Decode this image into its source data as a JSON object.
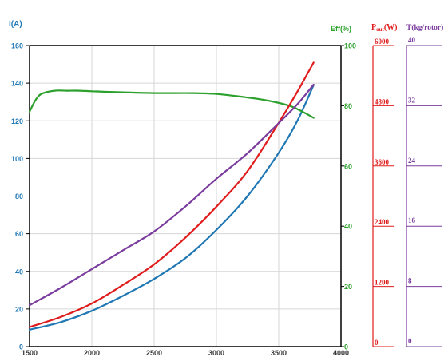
{
  "chart_data": {
    "type": "line",
    "x_axis": {
      "range": [
        1500,
        4000
      ],
      "ticks": [
        "1500",
        "2000",
        "2500",
        "3000",
        "3500",
        "4000"
      ],
      "tick_values": [
        1500,
        2000,
        2500,
        3000,
        3500,
        4000
      ],
      "grid": true
    },
    "axes": {
      "current": {
        "label": "I(A)",
        "range": [
          0,
          160
        ],
        "ticks": [
          "0",
          "20",
          "40",
          "60",
          "80",
          "100",
          "120",
          "140",
          "160"
        ],
        "tick_values": [
          0,
          20,
          40,
          60,
          80,
          100,
          120,
          140,
          160
        ],
        "color": "#1f77b4"
      },
      "efficiency": {
        "label": "Eff(%)",
        "range": [
          0,
          100
        ],
        "ticks": [
          "0",
          "20",
          "40",
          "60",
          "80",
          "100"
        ],
        "tick_values": [
          0,
          20,
          40,
          60,
          80,
          100
        ],
        "color": "#2ca02c"
      },
      "power": {
        "label_main": "P",
        "label_sub": "out",
        "label_unit": "(W)",
        "range": [
          0,
          6000
        ],
        "ticks": [
          "0",
          "1200",
          "2400",
          "3600",
          "4800",
          "6000"
        ],
        "tick_values": [
          0,
          1200,
          2400,
          3600,
          4800,
          6000
        ],
        "color": "#e01b1b"
      },
      "thrust": {
        "label": "T(kg/rotor)",
        "range": [
          0,
          40
        ],
        "ticks": [
          "0",
          "8",
          "16",
          "24",
          "32",
          "40"
        ],
        "tick_values": [
          0,
          8,
          16,
          24,
          32,
          40
        ],
        "color": "#7a3d9e"
      }
    },
    "series": [
      {
        "axis": "current",
        "color": "#1f77b4",
        "x": [
          1500,
          1750,
          2000,
          2250,
          2500,
          2750,
          3000,
          3250,
          3500,
          3650,
          3780
        ],
        "y": [
          9,
          13,
          19,
          27,
          36,
          47,
          62,
          80,
          103,
          120,
          139
        ]
      },
      {
        "axis": "efficiency",
        "color": "#2ca02c",
        "x": [
          1500,
          1550,
          1600,
          1700,
          1800,
          1900,
          2000,
          2200,
          2500,
          2800,
          3000,
          3200,
          3400,
          3600,
          3780
        ],
        "y": [
          78,
          82,
          84,
          85,
          85,
          85,
          84.8,
          84.5,
          84.2,
          84.2,
          83.9,
          83,
          81.8,
          79.8,
          76
        ]
      },
      {
        "axis": "power",
        "color": "#e01b1b",
        "x": [
          1500,
          1750,
          2000,
          2250,
          2500,
          2750,
          3000,
          3250,
          3500,
          3650,
          3780
        ],
        "y": [
          390,
          590,
          860,
          1230,
          1640,
          2170,
          2790,
          3500,
          4460,
          5080,
          5660
        ]
      },
      {
        "axis": "thrust",
        "color": "#7a3d9e",
        "x": [
          1500,
          1750,
          2000,
          2250,
          2500,
          2750,
          3000,
          3250,
          3500,
          3650,
          3780
        ],
        "y": [
          5.5,
          7.8,
          10.3,
          12.8,
          15.3,
          18.6,
          22.3,
          25.7,
          29.7,
          32.2,
          34.8
        ]
      }
    ]
  }
}
